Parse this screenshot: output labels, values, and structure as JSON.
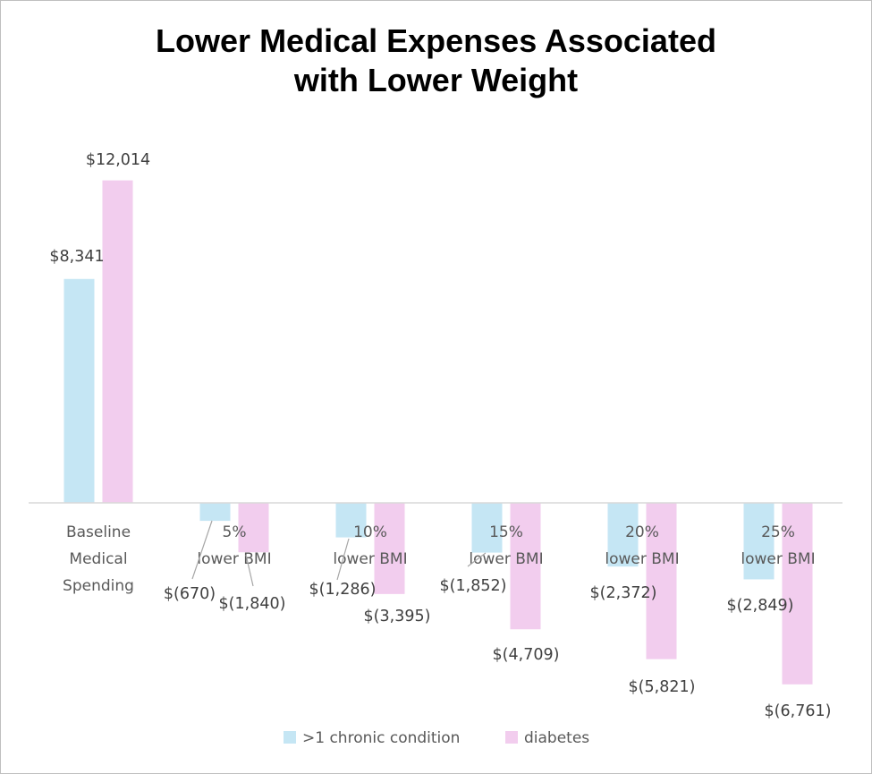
{
  "chart_data": {
    "type": "bar",
    "title_lines": [
      "Lower Medical Expenses Associated",
      "with Lower Weight"
    ],
    "categories": [
      [
        "Baseline",
        "Medical",
        "Spending"
      ],
      [
        "5%",
        "lower BMI"
      ],
      [
        "10%",
        "lower BMI"
      ],
      [
        "15%",
        "lower BMI"
      ],
      [
        "20%",
        "lower BMI"
      ],
      [
        "25%",
        "lower BMI"
      ]
    ],
    "series": [
      {
        "name": ">1 chronic condition",
        "color": "#c5e6f4",
        "values": [
          8341,
          -670,
          -1286,
          -1852,
          -2372,
          -2849
        ],
        "labels": [
          "$8,341",
          "$(670)",
          "$(1,286)",
          "$(1,852)",
          "$(2,372)",
          "$(2,849)"
        ]
      },
      {
        "name": "diabetes",
        "color": "#f2cdee",
        "values": [
          12014,
          -1840,
          -3395,
          -4709,
          -5821,
          -6761
        ],
        "labels": [
          "$12,014",
          "$(1,840)",
          "$(3,395)",
          "$(4,709)",
          "$(5,821)",
          "$(6,761)"
        ]
      }
    ],
    "xlabel": "",
    "ylabel": "",
    "grid": false,
    "legend_position": "bottom"
  }
}
